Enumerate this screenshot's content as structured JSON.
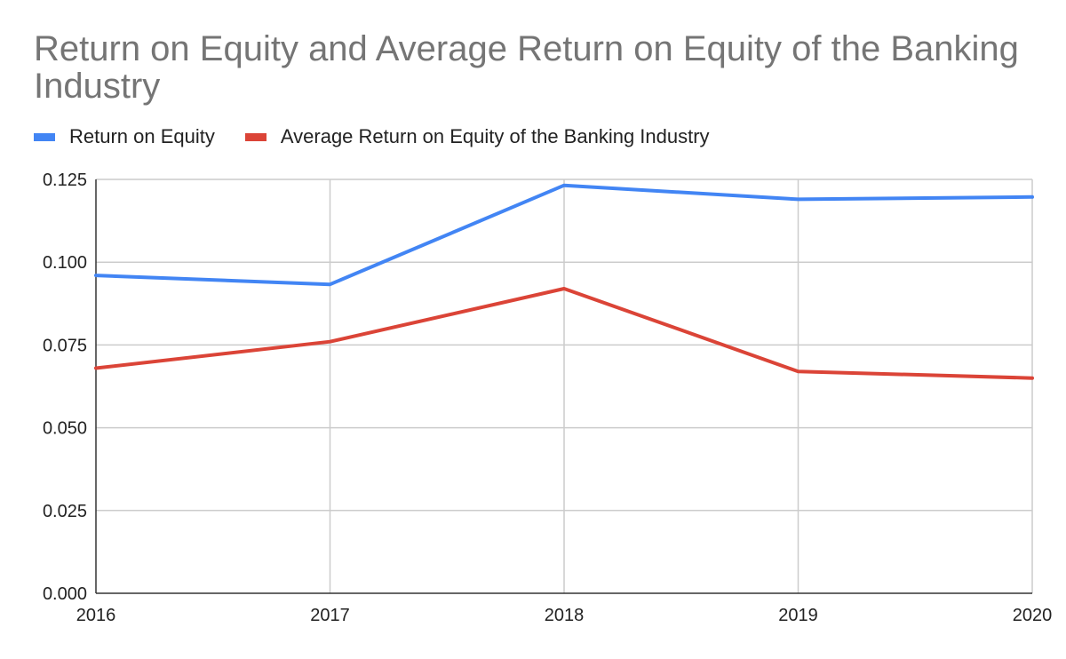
{
  "chart_data": {
    "type": "line",
    "title": "Return on Equity and Average Return on Equity of the Banking Industry",
    "xlabel": "",
    "ylabel": "",
    "x": [
      "2016",
      "2017",
      "2018",
      "2019",
      "2020"
    ],
    "yticks": [
      "0.000",
      "0.025",
      "0.050",
      "0.075",
      "0.100",
      "0.125"
    ],
    "ylim": [
      0,
      0.125
    ],
    "grid": true,
    "legend_position": "top-left",
    "series": [
      {
        "name": "Return on Equity",
        "color": "#4285f4",
        "values": [
          0.096,
          0.0933,
          0.1232,
          0.119,
          0.1197
        ]
      },
      {
        "name": "Average Return on Equity of the Banking Industry",
        "color": "#db4437",
        "values": [
          0.068,
          0.076,
          0.092,
          0.067,
          0.065
        ]
      }
    ]
  }
}
